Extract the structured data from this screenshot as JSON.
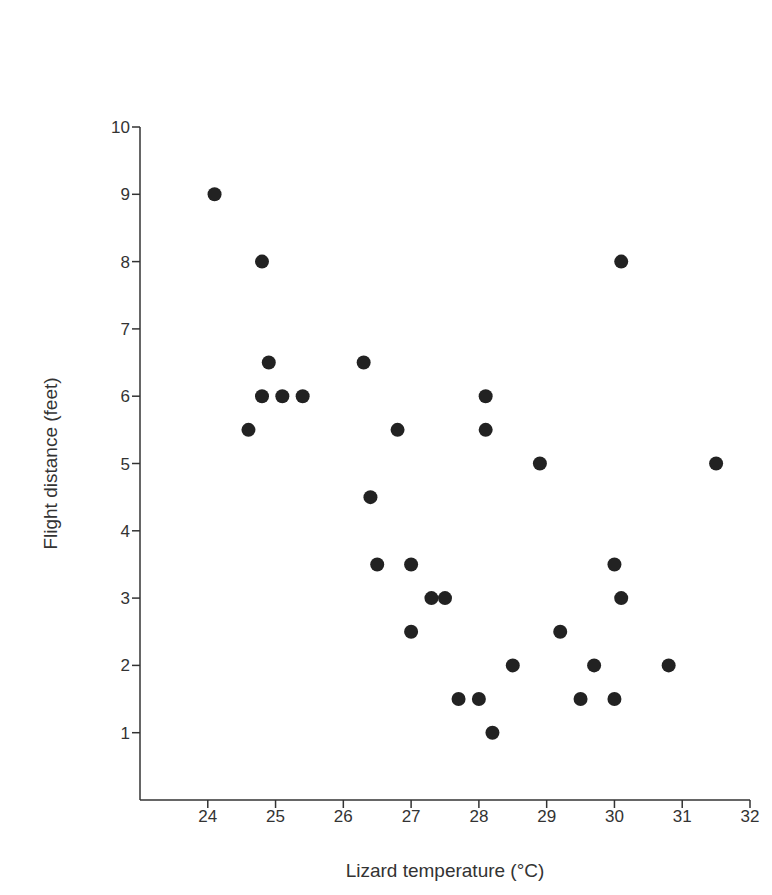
{
  "chart_data": {
    "type": "scatter",
    "x_label": "Lizard temperature (°C)",
    "y_label": "Flight distance (feet)",
    "x": [
      24.1,
      24.8,
      24.9,
      24.8,
      25.1,
      25.4,
      24.6,
      26.3,
      26.4,
      26.5,
      26.8,
      27.0,
      27.0,
      27.3,
      27.5,
      27.7,
      28.1,
      28.1,
      28.0,
      28.2,
      28.5,
      28.9,
      29.2,
      29.5,
      29.7,
      30.0,
      30.0,
      30.1,
      30.1,
      30.8,
      31.5
    ],
    "values": [
      9,
      8,
      6.5,
      6,
      6,
      6,
      5.5,
      6.5,
      4.5,
      3.5,
      5.5,
      3.5,
      2.5,
      3,
      3,
      1.5,
      6,
      5.5,
      1.5,
      1,
      2,
      5,
      2.5,
      1.5,
      2,
      1.5,
      3.5,
      3,
      8,
      2,
      5
    ],
    "color": "#222222",
    "marker": "circle",
    "xlim": [
      23,
      32
    ],
    "xticks": [
      24,
      25,
      26,
      27,
      28,
      29,
      30,
      31,
      32
    ],
    "ylim": [
      0,
      10
    ],
    "yticks": [
      1,
      2,
      3,
      4,
      5,
      6,
      7,
      8,
      9,
      10
    ],
    "grid": false
  }
}
